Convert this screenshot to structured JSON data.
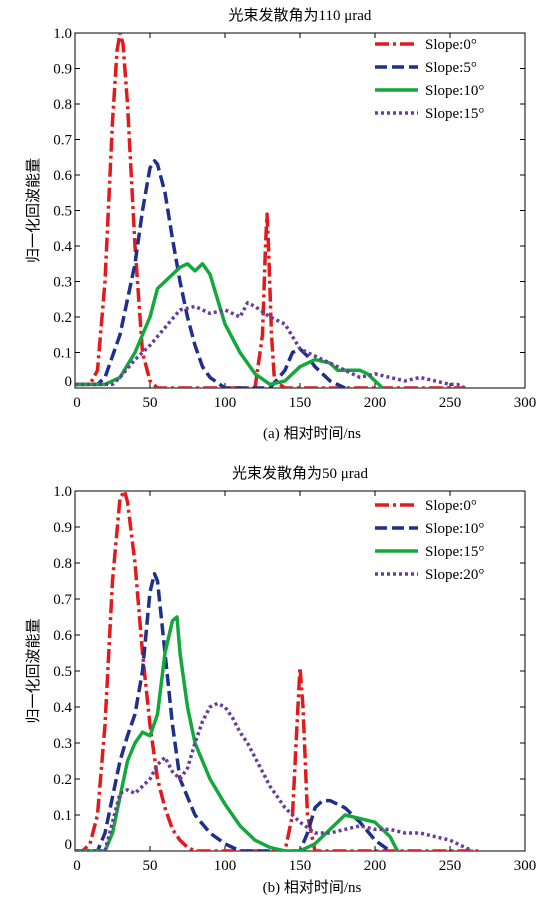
{
  "chart_data": [
    {
      "type": "line",
      "title": "光束发散角为110 μrad",
      "xlabel": "(a) 相对时间/ns",
      "ylabel": "归一化回波能量",
      "xlim": [
        0,
        300
      ],
      "ylim": [
        0,
        1.0
      ],
      "xticks": [
        "0",
        "50",
        "100",
        "150",
        "200",
        "250",
        "300"
      ],
      "yticks": [
        "0",
        "0.1",
        "0.2",
        "0.3",
        "0.4",
        "0.5",
        "0.6",
        "0.7",
        "0.8",
        "0.9",
        "1.0"
      ],
      "legend_position": "top-right",
      "series": [
        {
          "name": "Slope:0°",
          "color": "#e31a1c",
          "dash": "dashdot",
          "x": [
            0,
            10,
            15,
            20,
            25,
            28,
            30,
            32,
            35,
            40,
            45,
            50,
            55,
            60,
            100,
            120,
            125,
            127,
            128,
            129,
            131,
            133,
            140,
            150,
            200,
            260
          ],
          "y": [
            0.01,
            0.01,
            0.05,
            0.3,
            0.75,
            0.95,
            1.0,
            0.97,
            0.8,
            0.4,
            0.1,
            0.02,
            0.0,
            0.0,
            0.0,
            0.0,
            0.15,
            0.4,
            0.49,
            0.4,
            0.15,
            0.02,
            0.0,
            0.0,
            0.0,
            0.0
          ]
        },
        {
          "name": "Slope:5°",
          "color": "#1f2f8c",
          "dash": "dash",
          "x": [
            0,
            15,
            20,
            30,
            40,
            45,
            50,
            53,
            55,
            60,
            65,
            70,
            75,
            80,
            85,
            90,
            100,
            110,
            130,
            140,
            145,
            150,
            155,
            160,
            165,
            170,
            180
          ],
          "y": [
            0.01,
            0.01,
            0.03,
            0.15,
            0.35,
            0.5,
            0.62,
            0.64,
            0.63,
            0.55,
            0.42,
            0.3,
            0.2,
            0.12,
            0.06,
            0.03,
            0.0,
            0.0,
            0.0,
            0.05,
            0.1,
            0.11,
            0.09,
            0.06,
            0.04,
            0.02,
            0.0
          ]
        },
        {
          "name": "Slope:10°",
          "color": "#12a83c",
          "dash": "solid",
          "x": [
            0,
            20,
            30,
            40,
            50,
            55,
            60,
            65,
            70,
            75,
            80,
            85,
            90,
            95,
            100,
            110,
            120,
            130,
            140,
            150,
            160,
            170,
            175,
            180,
            190,
            195,
            200,
            205
          ],
          "y": [
            0.01,
            0.01,
            0.03,
            0.1,
            0.2,
            0.28,
            0.3,
            0.32,
            0.34,
            0.35,
            0.33,
            0.35,
            0.32,
            0.25,
            0.18,
            0.1,
            0.04,
            0.01,
            0.02,
            0.06,
            0.08,
            0.07,
            0.05,
            0.05,
            0.05,
            0.04,
            0.02,
            0.0
          ]
        },
        {
          "name": "Slope:15°",
          "color": "#6a3d9a",
          "dash": "dot",
          "x": [
            0,
            25,
            30,
            40,
            50,
            60,
            70,
            80,
            90,
            100,
            110,
            115,
            120,
            130,
            140,
            150,
            160,
            170,
            180,
            190,
            200,
            210,
            220,
            230,
            240,
            250,
            255,
            260
          ],
          "y": [
            0.01,
            0.01,
            0.03,
            0.08,
            0.12,
            0.17,
            0.22,
            0.23,
            0.21,
            0.22,
            0.2,
            0.24,
            0.23,
            0.2,
            0.18,
            0.11,
            0.09,
            0.07,
            0.05,
            0.03,
            0.04,
            0.03,
            0.02,
            0.03,
            0.02,
            0.01,
            0.01,
            0.0
          ]
        }
      ]
    },
    {
      "type": "line",
      "title": "光束发散角为50 μrad",
      "xlabel": "(b) 相对时间/ns",
      "ylabel": "归一化回波能量",
      "xlim": [
        0,
        300
      ],
      "ylim": [
        0,
        1.0
      ],
      "xticks": [
        "0",
        "50",
        "100",
        "150",
        "200",
        "250",
        "300"
      ],
      "yticks": [
        "0",
        "0.1",
        "0.2",
        "0.3",
        "0.4",
        "0.5",
        "0.6",
        "0.7",
        "0.8",
        "0.9",
        "1.0"
      ],
      "legend_position": "top-right",
      "series": [
        {
          "name": "Slope:0°",
          "color": "#e31a1c",
          "dash": "dashdot",
          "x": [
            0,
            5,
            10,
            15,
            20,
            25,
            30,
            33,
            35,
            40,
            45,
            50,
            55,
            60,
            65,
            70,
            75,
            80,
            140,
            145,
            148,
            150,
            152,
            155,
            160,
            200,
            270
          ],
          "y": [
            0.0,
            0.0,
            0.02,
            0.1,
            0.35,
            0.75,
            0.98,
            1.0,
            0.97,
            0.8,
            0.55,
            0.35,
            0.2,
            0.12,
            0.06,
            0.03,
            0.01,
            0.0,
            0.0,
            0.1,
            0.35,
            0.51,
            0.4,
            0.1,
            0.0,
            0.0,
            0.0
          ]
        },
        {
          "name": "Slope:10°",
          "color": "#1f2f8c",
          "dash": "dash",
          "x": [
            0,
            15,
            20,
            25,
            30,
            35,
            40,
            45,
            50,
            53,
            55,
            60,
            65,
            70,
            80,
            90,
            100,
            110,
            150,
            155,
            160,
            165,
            170,
            180,
            190,
            200,
            210
          ],
          "y": [
            0.0,
            0.0,
            0.05,
            0.15,
            0.25,
            0.32,
            0.38,
            0.5,
            0.72,
            0.77,
            0.75,
            0.55,
            0.35,
            0.2,
            0.1,
            0.05,
            0.02,
            0.0,
            0.0,
            0.05,
            0.12,
            0.14,
            0.14,
            0.12,
            0.08,
            0.03,
            0.0
          ]
        },
        {
          "name": "Slope:15°",
          "color": "#12a83c",
          "dash": "solid",
          "x": [
            0,
            20,
            25,
            30,
            35,
            40,
            45,
            50,
            55,
            60,
            65,
            68,
            70,
            75,
            80,
            90,
            100,
            110,
            120,
            130,
            140,
            150,
            160,
            170,
            180,
            190,
            200,
            210,
            215
          ],
          "y": [
            0.0,
            0.0,
            0.05,
            0.15,
            0.25,
            0.3,
            0.33,
            0.32,
            0.38,
            0.55,
            0.64,
            0.65,
            0.55,
            0.4,
            0.3,
            0.2,
            0.13,
            0.07,
            0.03,
            0.01,
            0.0,
            0.0,
            0.02,
            0.06,
            0.1,
            0.09,
            0.08,
            0.04,
            0.0
          ]
        },
        {
          "name": "Slope:20°",
          "color": "#6a3d9a",
          "dash": "dot",
          "x": [
            0,
            20,
            25,
            30,
            35,
            40,
            45,
            50,
            55,
            60,
            65,
            70,
            75,
            80,
            85,
            90,
            95,
            100,
            105,
            110,
            115,
            120,
            130,
            140,
            150,
            160,
            170,
            180,
            190,
            200,
            210,
            220,
            230,
            240,
            250,
            260,
            265
          ],
          "y": [
            0.0,
            0.0,
            0.08,
            0.16,
            0.17,
            0.16,
            0.18,
            0.2,
            0.24,
            0.26,
            0.22,
            0.2,
            0.23,
            0.3,
            0.36,
            0.4,
            0.41,
            0.4,
            0.37,
            0.33,
            0.3,
            0.26,
            0.18,
            0.12,
            0.08,
            0.05,
            0.05,
            0.06,
            0.07,
            0.06,
            0.06,
            0.05,
            0.05,
            0.04,
            0.03,
            0.01,
            0.0
          ]
        }
      ]
    }
  ]
}
